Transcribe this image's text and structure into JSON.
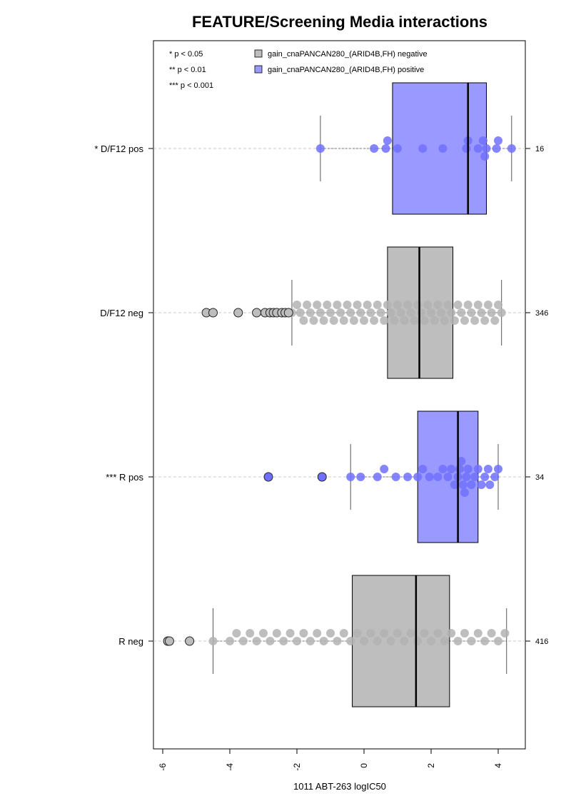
{
  "chart_data": {
    "type": "boxplot-beeswarm",
    "title": "FEATURE/Screening Media interactions",
    "xlabel": "1011 ABT-263 logIC50",
    "xlim": [
      -6.2,
      4.8
    ],
    "x_ticks": [
      -6,
      -4,
      -2,
      0,
      2,
      4
    ],
    "x_tick_labels": [
      "-6",
      "-4",
      "-2",
      "0",
      "2",
      "4"
    ],
    "grid": "dashed guide line per group",
    "legend_position": "top",
    "significance_legend": [
      "* p < 0.05",
      "** p < 0.01",
      "*** p < 0.001"
    ],
    "legend": [
      {
        "label": "gain_cnaPANCAN280_(ARID4B,FH) negative",
        "color": "#bebebe"
      },
      {
        "label": "gain_cnaPANCAN280_(ARID4B,FH) positive",
        "color": "#9999ff"
      }
    ],
    "colors": {
      "negative_box": "#bebebe",
      "positive_box": "#9999ff",
      "negative_point": "#b3b3b3",
      "positive_point": "#7070ff"
    },
    "groups": [
      {
        "label": "* D/F12 pos",
        "status": "positive",
        "n": "16",
        "whisker_low": -1.3,
        "q1": 0.85,
        "median": 3.1,
        "q3": 3.65,
        "whisker_high": 4.4,
        "points": [
          -1.3,
          0.3,
          0.65,
          0.7,
          1.0,
          1.75,
          2.35,
          3.05,
          3.1,
          3.4,
          3.55,
          3.6,
          3.65,
          3.95,
          4.0,
          4.4
        ],
        "outliers": []
      },
      {
        "label": "D/F12 neg",
        "status": "negative",
        "n": "346",
        "whisker_low": -2.15,
        "q1": 0.7,
        "median": 1.65,
        "q3": 2.65,
        "whisker_high": 4.1,
        "points": [
          -2.15,
          -2.0,
          -1.9,
          -1.8,
          -1.7,
          -1.6,
          -1.5,
          -1.4,
          -1.3,
          -1.2,
          -1.1,
          -1.0,
          -0.9,
          -0.8,
          -0.7,
          -0.6,
          -0.5,
          -0.4,
          -0.3,
          -0.2,
          -0.1,
          0.0,
          0.1,
          0.2,
          0.3,
          0.4,
          0.5,
          0.6,
          0.7,
          0.8,
          0.9,
          1.0,
          1.1,
          1.2,
          1.3,
          1.4,
          1.5,
          1.6,
          1.7,
          1.8,
          1.9,
          2.0,
          2.1,
          2.2,
          2.3,
          2.4,
          2.5,
          2.6,
          2.7,
          2.8,
          2.9,
          3.0,
          3.1,
          3.2,
          3.3,
          3.4,
          3.5,
          3.6,
          3.7,
          3.8,
          3.9,
          4.0,
          4.1
        ],
        "outliers": [
          -4.7,
          -4.5,
          -3.75,
          -3.2,
          -2.95,
          -2.8,
          -2.7,
          -2.6,
          -2.45,
          -2.35,
          -2.25
        ]
      },
      {
        "label": "*** R pos",
        "status": "positive",
        "n": "34",
        "whisker_low": -0.4,
        "q1": 1.6,
        "median": 2.8,
        "q3": 3.4,
        "whisker_high": 4.0,
        "points": [
          -0.4,
          -0.1,
          0.4,
          0.6,
          0.95,
          1.3,
          1.6,
          1.75,
          1.95,
          2.2,
          2.35,
          2.5,
          2.6,
          2.7,
          2.8,
          2.85,
          2.9,
          2.95,
          3.0,
          3.05,
          3.1,
          3.2,
          3.3,
          3.4,
          3.5,
          3.6,
          3.7,
          3.75,
          3.9,
          4.0
        ],
        "outliers": [
          -2.85,
          -1.25
        ]
      },
      {
        "label": "R neg",
        "status": "negative",
        "n": "416",
        "whisker_low": -4.5,
        "q1": -0.35,
        "median": 1.55,
        "q3": 2.55,
        "whisker_high": 4.25,
        "points": [
          -4.5,
          -4.0,
          -3.8,
          -3.6,
          -3.4,
          -3.2,
          -3.0,
          -2.8,
          -2.6,
          -2.4,
          -2.2,
          -2.0,
          -1.8,
          -1.6,
          -1.4,
          -1.2,
          -1.0,
          -0.8,
          -0.6,
          -0.4,
          -0.2,
          0.0,
          0.2,
          0.4,
          0.6,
          0.8,
          1.0,
          1.2,
          1.4,
          1.6,
          1.8,
          2.0,
          2.2,
          2.4,
          2.6,
          2.8,
          3.0,
          3.2,
          3.4,
          3.6,
          3.8,
          4.0,
          4.2
        ],
        "outliers": [
          -5.85,
          -5.8,
          -5.2
        ]
      }
    ]
  }
}
